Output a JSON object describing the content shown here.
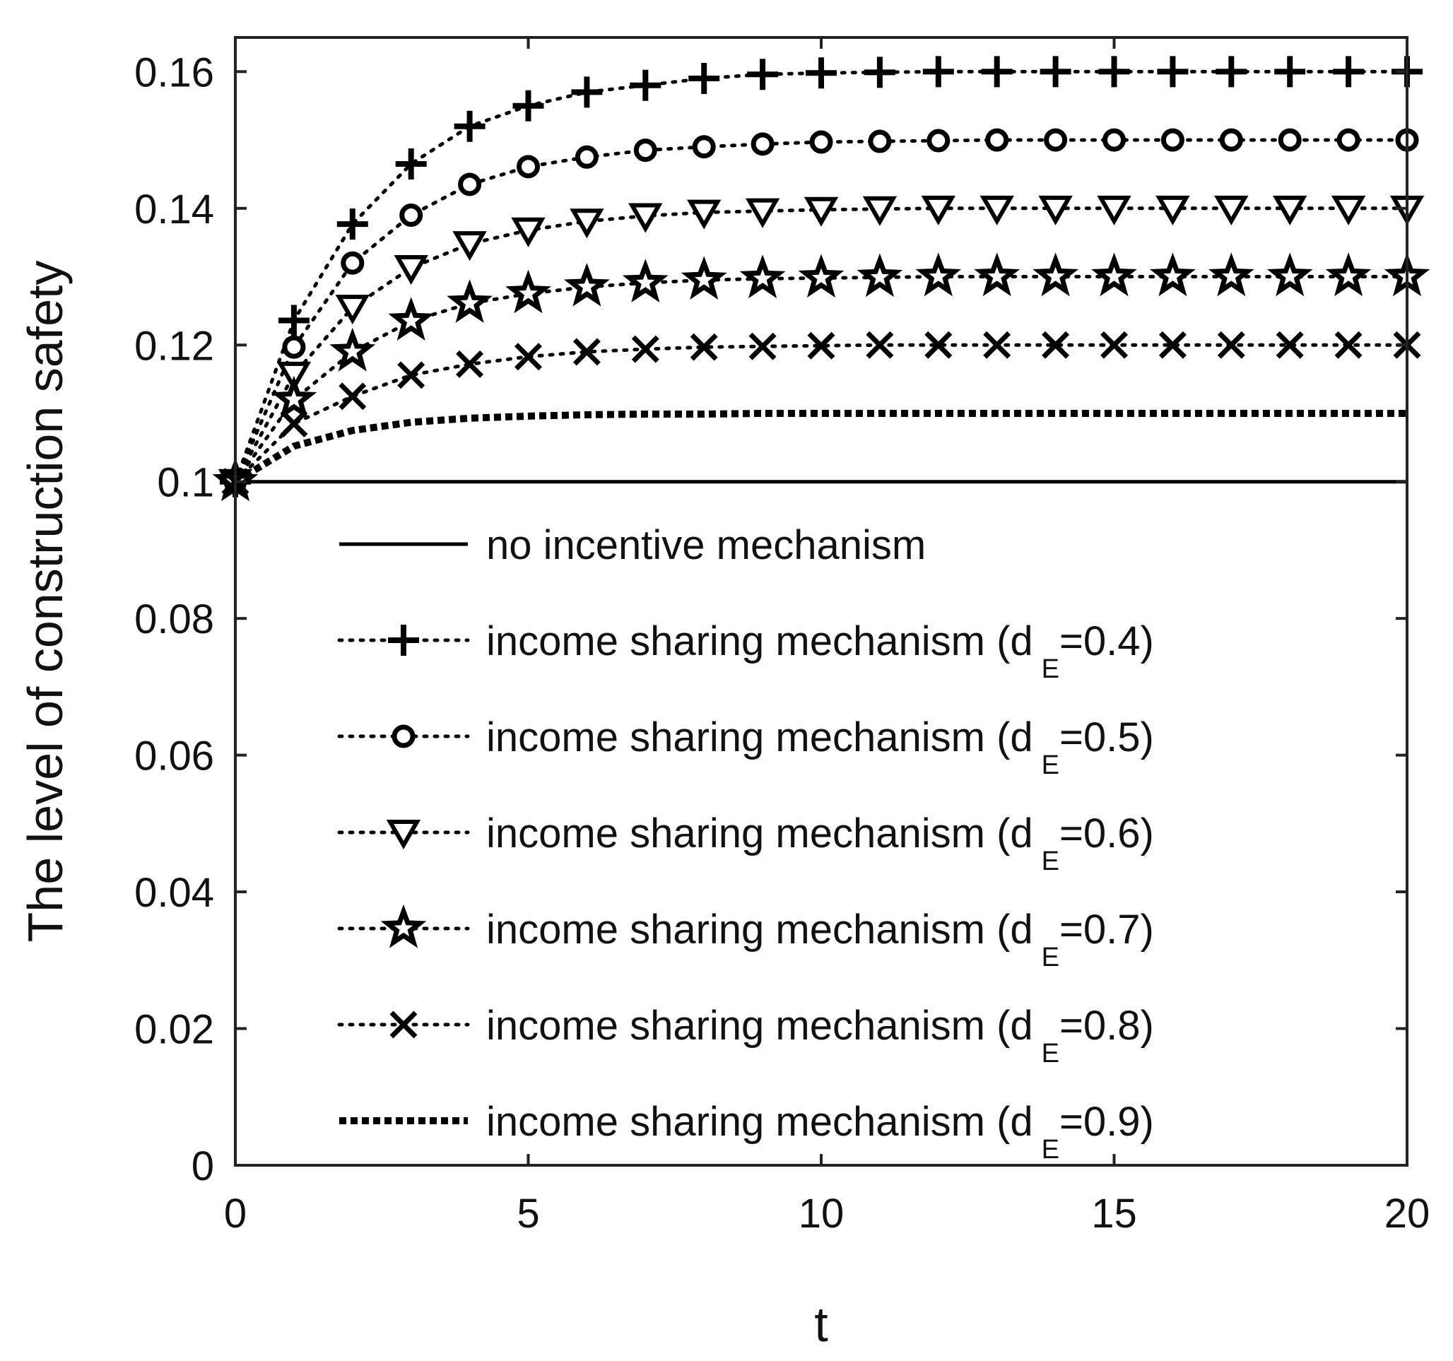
{
  "chart_data": {
    "type": "line",
    "title": "",
    "xlabel": "t",
    "ylabel": "The level of construction safety",
    "xlim": [
      0,
      20
    ],
    "ylim": [
      0,
      0.165
    ],
    "xticks": [
      0,
      5,
      10,
      15,
      20
    ],
    "xtick_labels": [
      "0",
      "5",
      "10",
      "15",
      "20"
    ],
    "yticks": [
      0,
      0.02,
      0.04,
      0.06,
      0.08,
      0.1,
      0.12,
      0.14,
      0.16
    ],
    "ytick_labels": [
      "0",
      "0.02",
      "0.04",
      "0.06",
      "0.08",
      "0.1",
      "0.12",
      "0.14",
      "0.16"
    ],
    "grid": false,
    "legend_position": "center",
    "x": [
      0,
      1,
      2,
      3,
      4,
      5,
      6,
      7,
      8,
      9,
      10,
      11,
      12,
      13,
      14,
      15,
      16,
      17,
      18,
      19,
      20
    ],
    "series": [
      {
        "name": "no incentive mechanism",
        "legend_prefix": "no incentive mechanism",
        "legend_sub": "",
        "legend_suffix": "",
        "line_style": "solid",
        "marker": "none",
        "color": "#000000",
        "values": [
          0.1,
          0.1,
          0.1,
          0.1,
          0.1,
          0.1,
          0.1,
          0.1,
          0.1,
          0.1,
          0.1,
          0.1,
          0.1,
          0.1,
          0.1,
          0.1,
          0.1,
          0.1,
          0.1,
          0.1,
          0.1
        ]
      },
      {
        "name": "income sharing mechanism (dE=0.4)",
        "legend_prefix": "income sharing mechanism (d",
        "legend_sub": "E",
        "legend_suffix": "=0.4)",
        "line_style": "dotted",
        "marker": "plus",
        "color": "#000000",
        "values": [
          0.1,
          0.1236,
          0.1377,
          0.1465,
          0.152,
          0.155,
          0.157,
          0.158,
          0.159,
          0.1596,
          0.1598,
          0.1599,
          0.16,
          0.16,
          0.16,
          0.16,
          0.16,
          0.16,
          0.16,
          0.16,
          0.16
        ]
      },
      {
        "name": "income sharing mechanism (dE=0.5)",
        "legend_prefix": "income sharing mechanism (d",
        "legend_sub": "E",
        "legend_suffix": "=0.5)",
        "line_style": "dotted",
        "marker": "circle",
        "color": "#000000",
        "values": [
          0.1,
          0.1197,
          0.132,
          0.139,
          0.1435,
          0.1461,
          0.1475,
          0.1485,
          0.149,
          0.1494,
          0.1497,
          0.1498,
          0.1499,
          0.15,
          0.15,
          0.15,
          0.15,
          0.15,
          0.15,
          0.15,
          0.15
        ]
      },
      {
        "name": "income sharing mechanism (dE=0.6)",
        "legend_prefix": "income sharing mechanism (d",
        "legend_sub": "E",
        "legend_suffix": "=0.6)",
        "line_style": "dotted",
        "marker": "triangle-down",
        "color": "#000000",
        "values": [
          0.1,
          0.1157,
          0.1255,
          0.1313,
          0.1348,
          0.1368,
          0.1381,
          0.1389,
          0.1394,
          0.1396,
          0.1398,
          0.1399,
          0.14,
          0.14,
          0.14,
          0.14,
          0.14,
          0.14,
          0.14,
          0.14,
          0.14
        ]
      },
      {
        "name": "income sharing mechanism (dE=0.7)",
        "legend_prefix": "income sharing mechanism (d",
        "legend_sub": "E",
        "legend_suffix": "=0.7)",
        "line_style": "dotted",
        "marker": "star",
        "color": "#000000",
        "values": [
          0.1,
          0.112,
          0.119,
          0.1235,
          0.1261,
          0.1275,
          0.1285,
          0.1291,
          0.1295,
          0.1297,
          0.1298,
          0.1299,
          0.13,
          0.13,
          0.13,
          0.13,
          0.13,
          0.13,
          0.13,
          0.13,
          0.13
        ]
      },
      {
        "name": "income sharing mechanism (dE=0.8)",
        "legend_prefix": "income sharing mechanism (d",
        "legend_sub": "E",
        "legend_suffix": "=0.8)",
        "line_style": "dotted",
        "marker": "x",
        "color": "#000000",
        "values": [
          0.1,
          0.1085,
          0.1125,
          0.1156,
          0.1172,
          0.1183,
          0.119,
          0.1194,
          0.1197,
          0.1198,
          0.1199,
          0.12,
          0.12,
          0.12,
          0.12,
          0.12,
          0.12,
          0.12,
          0.12,
          0.12,
          0.12
        ]
      },
      {
        "name": "income sharing mechanism (dE=0.9)",
        "legend_prefix": "income sharing mechanism (d",
        "legend_sub": "E",
        "legend_suffix": "=0.9)",
        "line_style": "thick-dotted",
        "marker": "none",
        "color": "#000000",
        "values": [
          0.1,
          0.1052,
          0.1075,
          0.1087,
          0.1093,
          0.1096,
          0.1098,
          0.1099,
          0.1099,
          0.11,
          0.11,
          0.11,
          0.11,
          0.11,
          0.11,
          0.11,
          0.11,
          0.11,
          0.11,
          0.11,
          0.11
        ]
      }
    ]
  }
}
